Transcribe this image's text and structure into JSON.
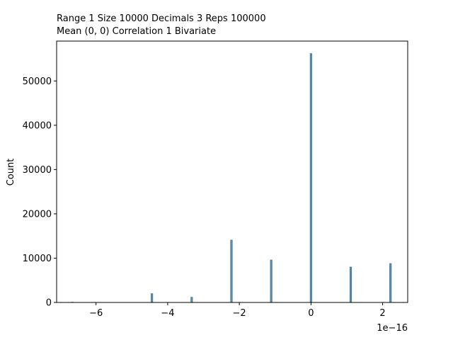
{
  "chart_data": {
    "type": "bar",
    "title_lines": [
      "Range 1   Size 10000   Decimals 3   Reps 100000",
      "Mean (0, 0)  Correlation 1  Bivariate"
    ],
    "xlabel": "",
    "ylabel": "Count",
    "x_offset_label": "1e−16",
    "xlim": [
      -7.1,
      2.7
    ],
    "ylim": [
      0,
      59000
    ],
    "x_ticks": [
      {
        "value": -6,
        "label": "−6"
      },
      {
        "value": -4,
        "label": "−4"
      },
      {
        "value": -2,
        "label": "−2"
      },
      {
        "value": 0,
        "label": "0"
      },
      {
        "value": 2,
        "label": "2"
      }
    ],
    "y_ticks": [
      {
        "value": 0,
        "label": "0"
      },
      {
        "value": 10000,
        "label": "10000"
      },
      {
        "value": 20000,
        "label": "20000"
      },
      {
        "value": 30000,
        "label": "30000"
      },
      {
        "value": 40000,
        "label": "40000"
      },
      {
        "value": 50000,
        "label": "50000"
      }
    ],
    "bins": [
      {
        "x": -6.66,
        "count": 20
      },
      {
        "x": -4.44,
        "count": 2000
      },
      {
        "x": -3.33,
        "count": 1200
      },
      {
        "x": -2.22,
        "count": 14100
      },
      {
        "x": -1.11,
        "count": 9600
      },
      {
        "x": 0.0,
        "count": 56200
      },
      {
        "x": 1.11,
        "count": 8000
      },
      {
        "x": 2.22,
        "count": 8800
      }
    ],
    "bin_width": 0.05,
    "bar_fill": "#5b8db0",
    "bar_edge": "#3f6f92",
    "grid": false,
    "legend": "none"
  }
}
